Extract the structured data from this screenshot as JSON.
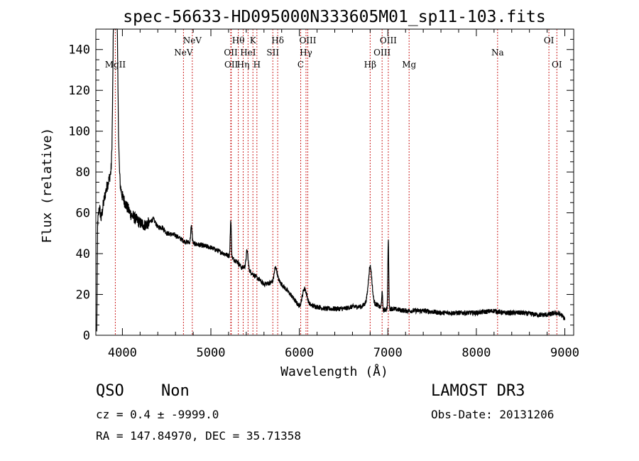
{
  "chart_data": {
    "type": "line",
    "title": "spec-56633-HD095000N333605M01_sp11-103.fits",
    "xlabel": "Wavelength (Å)",
    "ylabel": "Flux (relative)",
    "xlim": [
      3700,
      9100
    ],
    "ylim": [
      0,
      150
    ],
    "xticks": [
      "4000",
      "5000",
      "6000",
      "7000",
      "8000",
      "9000"
    ],
    "yticks": [
      "0",
      "20",
      "40",
      "60",
      "80",
      "100",
      "120",
      "140"
    ],
    "grid": false,
    "series": [
      {
        "name": "spectrum",
        "continuum": [
          [
            3710,
            1
          ],
          [
            3720,
            55
          ],
          [
            3740,
            63
          ],
          [
            3760,
            57
          ],
          [
            3780,
            63
          ],
          [
            3800,
            68
          ],
          [
            3820,
            72
          ],
          [
            3840,
            75
          ],
          [
            3860,
            78
          ],
          [
            3880,
            77
          ],
          [
            3900,
            85
          ],
          [
            3950,
            83
          ],
          [
            3975,
            73
          ],
          [
            4000,
            68
          ],
          [
            4050,
            63
          ],
          [
            4100,
            59
          ],
          [
            4150,
            57
          ],
          [
            4200,
            55
          ],
          [
            4250,
            54
          ],
          [
            4300,
            55
          ],
          [
            4350,
            57
          ],
          [
            4400,
            53
          ],
          [
            4450,
            53
          ],
          [
            4500,
            50
          ],
          [
            4600,
            49
          ],
          [
            4700,
            46
          ],
          [
            4800,
            45
          ],
          [
            4900,
            44
          ],
          [
            5000,
            43
          ],
          [
            5100,
            41
          ],
          [
            5200,
            39
          ],
          [
            5300,
            36
          ],
          [
            5350,
            33
          ],
          [
            5400,
            34
          ],
          [
            5450,
            31
          ],
          [
            5500,
            29
          ],
          [
            5600,
            25
          ],
          [
            5700,
            26
          ],
          [
            5750,
            28
          ],
          [
            5800,
            25
          ],
          [
            5900,
            20
          ],
          [
            6000,
            14
          ],
          [
            6050,
            16
          ],
          [
            6100,
            15
          ],
          [
            6200,
            14
          ],
          [
            6300,
            13
          ],
          [
            6400,
            13
          ],
          [
            6500,
            13
          ],
          [
            6600,
            14
          ],
          [
            6700,
            14
          ],
          [
            6760,
            16
          ],
          [
            6880,
            15
          ],
          [
            6950,
            12
          ],
          [
            6990,
            13
          ],
          [
            7050,
            13
          ],
          [
            7200,
            12
          ],
          [
            7400,
            12
          ],
          [
            7600,
            11
          ],
          [
            7800,
            11
          ],
          [
            8000,
            11
          ],
          [
            8200,
            12
          ],
          [
            8300,
            11
          ],
          [
            8500,
            11
          ],
          [
            8700,
            10
          ],
          [
            8800,
            10
          ],
          [
            8900,
            11
          ],
          [
            8960,
            10
          ],
          [
            9000,
            8
          ]
        ],
        "lines": [
          {
            "center": 3920,
            "height": 150,
            "width": 18
          },
          {
            "center": 4780,
            "height": 8,
            "width": 8
          },
          {
            "center": 5225,
            "height": 18,
            "width": 6
          },
          {
            "center": 5410,
            "height": 8,
            "width": 10
          },
          {
            "center": 5730,
            "height": 6,
            "width": 15
          },
          {
            "center": 6060,
            "height": 7,
            "width": 25
          },
          {
            "center": 6800,
            "height": 18,
            "width": 20
          },
          {
            "center": 6935,
            "height": 8,
            "width": 6
          },
          {
            "center": 7005,
            "height": 34,
            "width": 5
          }
        ],
        "noise_amplitude": 1.2
      }
    ],
    "annotation_lines": [
      {
        "label": "MgII",
        "wavelength": 3920,
        "row": 3
      },
      {
        "label": "NeV",
        "wavelength": 4690,
        "row": 2
      },
      {
        "label": "NeV",
        "wavelength": 4790,
        "row": 1
      },
      {
        "label": "OII",
        "wavelength": 5225,
        "row": 2
      },
      {
        "label": "OII",
        "wavelength": 5230,
        "row": 3
      },
      {
        "label": "Hθ",
        "wavelength": 5310,
        "row": 1
      },
      {
        "label": "Hη",
        "wavelength": 5365,
        "row": 3
      },
      {
        "label": "HeI",
        "wavelength": 5420,
        "row": 2
      },
      {
        "label": "K",
        "wavelength": 5475,
        "row": 1
      },
      {
        "label": "H",
        "wavelength": 5520,
        "row": 3
      },
      {
        "label": "SII",
        "wavelength": 5700,
        "row": 2
      },
      {
        "label": "Hδ",
        "wavelength": 5755,
        "row": 1
      },
      {
        "label": "C",
        "wavelength": 6015,
        "row": 3
      },
      {
        "label": "Hγ",
        "wavelength": 6075,
        "row": 2
      },
      {
        "label": "OIII",
        "wavelength": 6095,
        "row": 1
      },
      {
        "label": "Hβ",
        "wavelength": 6800,
        "row": 3
      },
      {
        "label": "OIII",
        "wavelength": 6935,
        "row": 2
      },
      {
        "label": "OIII",
        "wavelength": 7005,
        "row": 1
      },
      {
        "label": "Mg",
        "wavelength": 7240,
        "row": 3
      },
      {
        "label": "Na",
        "wavelength": 8240,
        "row": 2
      },
      {
        "label": "OI",
        "wavelength": 8820,
        "row": 1
      },
      {
        "label": "OI",
        "wavelength": 8910,
        "row": 3
      }
    ],
    "colors": {
      "spectrum": "#000000",
      "annotation_line": "#cc2222",
      "axis": "#000000"
    }
  },
  "info": {
    "class": "QSO",
    "subclass": "Non",
    "survey": "LAMOST DR3",
    "cz": "cz = 0.4 ± -9999.0",
    "obs_date": "Obs-Date: 20131206",
    "coords": "RA = 147.84970, DEC =  35.71358"
  }
}
